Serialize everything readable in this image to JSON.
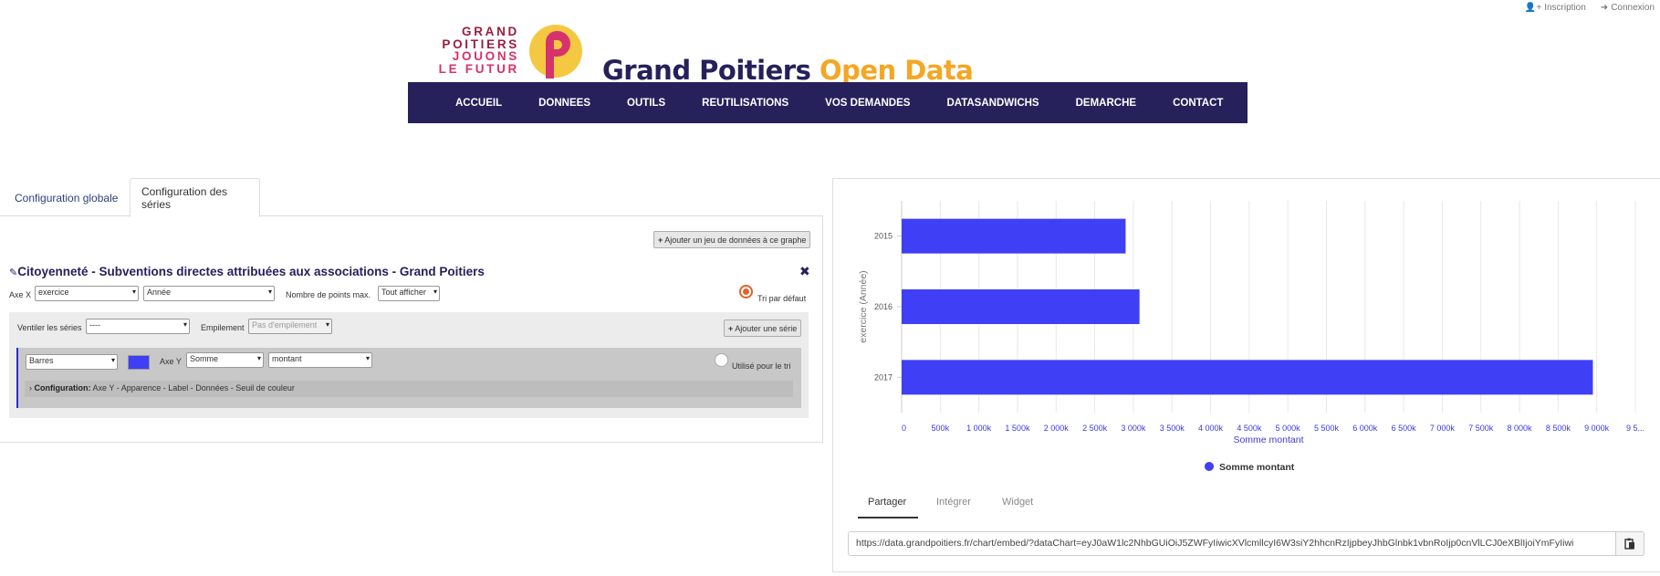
{
  "auth": {
    "signup": "Inscription",
    "login": "Connexion"
  },
  "logo": {
    "line1": "GRAND",
    "line2": "POITIERS",
    "line3": "JOUONS",
    "line4": "LE FUTUR"
  },
  "site": {
    "title_a": "Grand Poitiers",
    "title_b": "Open Data"
  },
  "nav": [
    "ACCUEIL",
    "DONNEES",
    "OUTILS",
    "REUTILISATIONS",
    "VOS DEMANDES",
    "DATASANDWICHS",
    "DEMARCHE",
    "CONTACT"
  ],
  "tabs": {
    "global": "Configuration globale",
    "series": "Configuration des séries"
  },
  "add_dataset_button": "Ajouter un jeu de données à ce graphe",
  "dataset": {
    "title": "Citoyenneté - Subventions directes attribuées aux associations - Grand Poitiers",
    "close_icon": "close-icon",
    "axis_x_label": "Axe X",
    "axis_x_field": "exercice",
    "axis_x_format": "Année",
    "max_points_label": "Nombre de points max.",
    "max_points_value": "Tout afficher",
    "default_sort_label": "Tri par défaut",
    "split_label": "Ventiler les séries",
    "split_value": "----",
    "stack_label": "Empilement",
    "stack_value": "Pas d'empilement",
    "add_series_button": "Ajouter une série"
  },
  "series": {
    "type": "Barres",
    "color": "#3f3ff5",
    "axis_y_label": "Axe Y",
    "aggregation": "Somme",
    "field": "montant",
    "use_for_sort_label": "Utilisé pour le tri",
    "config_label": "Configuration:",
    "config_items": "Axe Y - Apparence - Label - Données - Seuil de couleur"
  },
  "chart_data": {
    "type": "bar",
    "orientation": "horizontal",
    "categories": [
      "2015",
      "2016",
      "2017"
    ],
    "series": [
      {
        "name": "Somme montant",
        "values": [
          2900000,
          3080000,
          8950000
        ],
        "color": "#3f3ff5"
      }
    ],
    "xlabel": "Somme montant",
    "ylabel": "exercice (Année)",
    "xticks": [
      "0",
      "500k",
      "1 000k",
      "1 500k",
      "2 000k",
      "2 500k",
      "3 000k",
      "3 500k",
      "4 000k",
      "4 500k",
      "5 000k",
      "5 500k",
      "6 000k",
      "6 500k",
      "7 000k",
      "7 500k",
      "8 000k",
      "8 500k",
      "9 000k",
      "9 5..."
    ],
    "xlim": [
      0,
      9500000
    ],
    "grid": true,
    "legend": "bottom"
  },
  "share": {
    "tabs": [
      "Partager",
      "Intégrer",
      "Widget"
    ],
    "url": "https://data.grandpoitiers.fr/chart/embed/?dataChart=eyJ0aW1lc2NhbGUiOiJ5ZWFyIiwicXVlcmllcyI6W3siY2hhcnRzIjpbeyJhbGlnbk1vbnRoIjp0cnVlLCJ0eXBlIjoiYmFyIiwi"
  }
}
